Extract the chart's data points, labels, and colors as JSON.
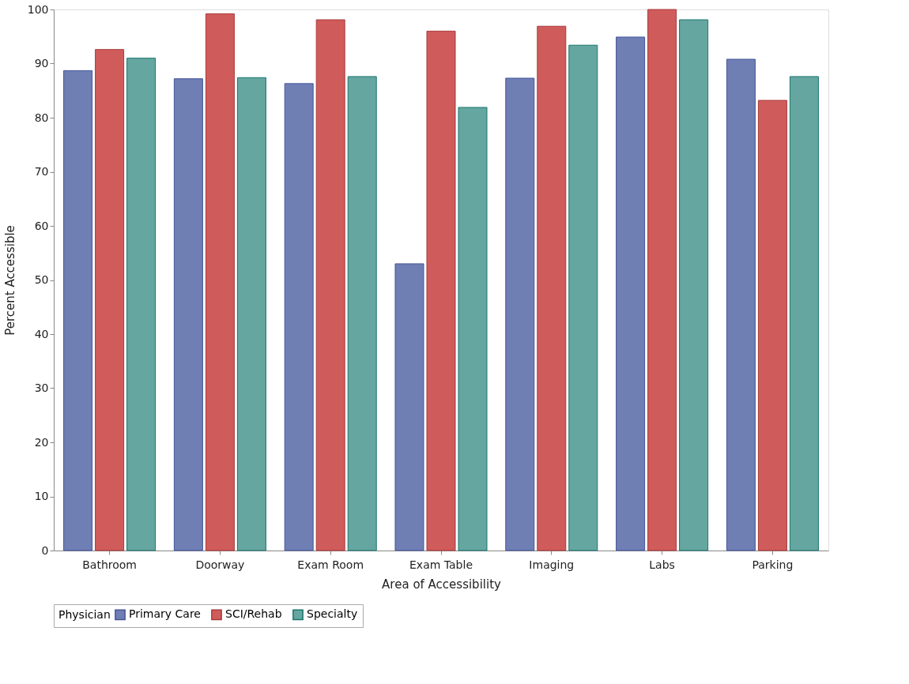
{
  "chart_data": {
    "type": "bar",
    "xlabel": "Area of Accessibility",
    "ylabel": "Percent Accessible",
    "legend_title": "Physician",
    "categories": [
      "Bathroom",
      "Doorway",
      "Exam Room",
      "Exam Table",
      "Imaging",
      "Labs",
      "Parking"
    ],
    "series": [
      {
        "name": "Primary Care",
        "color": "#6f7eb3",
        "values": [
          88.7,
          87.2,
          86.3,
          53.0,
          87.3,
          94.9,
          90.8
        ]
      },
      {
        "name": "SCI/Rehab",
        "color": "#d05b5b",
        "values": [
          92.6,
          99.2,
          98.1,
          96.0,
          96.9,
          100.0,
          83.2
        ]
      },
      {
        "name": "Specialty",
        "color": "#66a6a0",
        "values": [
          91.0,
          87.4,
          87.6,
          81.9,
          93.4,
          98.1,
          87.6
        ]
      }
    ],
    "ylim": [
      0,
      100
    ],
    "yticks": [
      0,
      10,
      20,
      30,
      40,
      50,
      60,
      70,
      80,
      90,
      100
    ],
    "grid": false,
    "legend": "bottom"
  }
}
